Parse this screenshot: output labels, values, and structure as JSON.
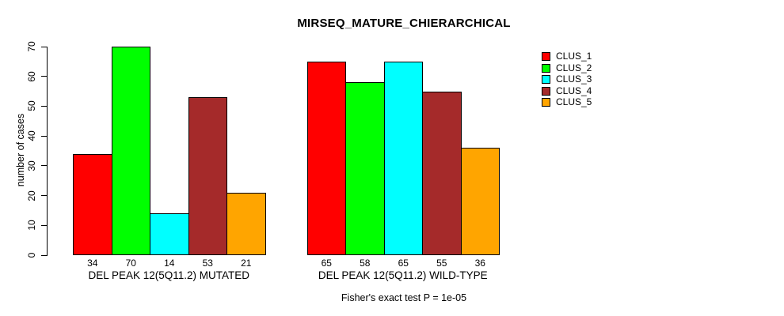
{
  "chart_data": {
    "type": "bar",
    "title": "MIRSEQ_MATURE_CHIERARCHICAL",
    "ylabel": "number of cases",
    "ylim": [
      0,
      70
    ],
    "yticks": [
      0,
      10,
      20,
      30,
      40,
      50,
      60,
      70
    ],
    "grid": false,
    "legend_position": "right",
    "bar_value_labels": true,
    "background_color": "#ffffff",
    "axis_color": "#000000",
    "categories": [
      "DEL PEAK 12(5Q11.2) MUTATED",
      "DEL PEAK 12(5Q11.2) WILD-TYPE"
    ],
    "series": [
      {
        "name": "CLUS_1",
        "color": "#ff0000",
        "values": [
          34,
          65
        ]
      },
      {
        "name": "CLUS_2",
        "color": "#00ff00",
        "values": [
          70,
          58
        ]
      },
      {
        "name": "CLUS_3",
        "color": "#00ffff",
        "values": [
          14,
          65
        ]
      },
      {
        "name": "CLUS_4",
        "color": "#a52a2a",
        "values": [
          53,
          55
        ]
      },
      {
        "name": "CLUS_5",
        "color": "#ffa500",
        "values": [
          21,
          36
        ]
      }
    ],
    "annotation": "Fisher's exact test P = 1e-05"
  }
}
